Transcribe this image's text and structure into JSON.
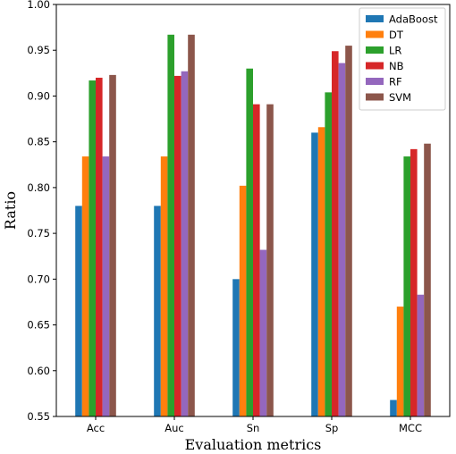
{
  "chart_data": {
    "type": "bar",
    "title": "",
    "xlabel": "Evaluation metrics",
    "ylabel": "Ratio",
    "ylim": [
      0.55,
      1.0
    ],
    "yticks": [
      "0.55",
      "0.60",
      "0.65",
      "0.70",
      "0.75",
      "0.80",
      "0.85",
      "0.90",
      "0.95",
      "1.00"
    ],
    "categories": [
      "Acc",
      "Auc",
      "Sn",
      "Sp",
      "MCC"
    ],
    "legend_position": "top-right",
    "grid": false,
    "series": [
      {
        "name": "AdaBoost",
        "color": "#1f77b4",
        "values": [
          0.78,
          0.78,
          0.7,
          0.86,
          0.568
        ]
      },
      {
        "name": "DT",
        "color": "#ff7f0e",
        "values": [
          0.834,
          0.834,
          0.802,
          0.866,
          0.67
        ]
      },
      {
        "name": "LR",
        "color": "#2ca02c",
        "values": [
          0.917,
          0.967,
          0.93,
          0.904,
          0.834
        ]
      },
      {
        "name": "NB",
        "color": "#d62728",
        "values": [
          0.92,
          0.922,
          0.891,
          0.949,
          0.842
        ]
      },
      {
        "name": "RF",
        "color": "#9467bd",
        "values": [
          0.834,
          0.927,
          0.732,
          0.936,
          0.683
        ]
      },
      {
        "name": "SVM",
        "color": "#8c564b",
        "values": [
          0.923,
          0.967,
          0.891,
          0.955,
          0.848
        ]
      }
    ]
  }
}
